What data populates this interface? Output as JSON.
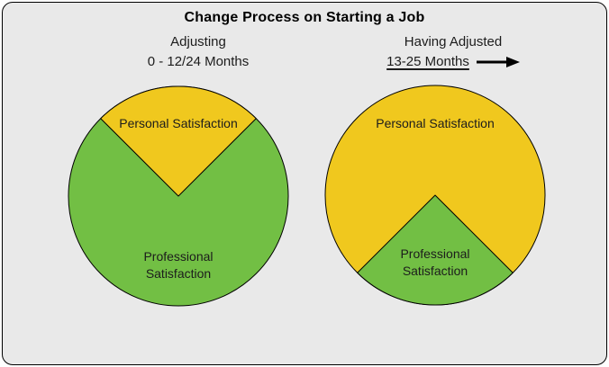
{
  "header": {
    "title": "Change Process on Starting a Job"
  },
  "palette": {
    "panel_background": "#E9E9E9",
    "panel_border": "#000000",
    "personal_yellow": "#F0C81E",
    "professional_green": "#72BF44",
    "text_color": "#1C1C1C"
  },
  "left_section": {
    "heading_line1": "Adjusting",
    "heading_line2": "0 - 12/24 Months"
  },
  "right_section": {
    "heading_line1": "Having Adjusted",
    "heading_line2": "13-25 Months",
    "arrow_icon": "right-arrow"
  },
  "chart_data": [
    {
      "type": "pie",
      "title": "Adjusting 0 - 12/24 Months",
      "legend": "none",
      "labels_inside": true,
      "slices": [
        {
          "label": "Personal Satisfaction",
          "value": 25,
          "color": "#F0C81E",
          "position": "top"
        },
        {
          "label": "Professional Satisfaction",
          "value": 75,
          "color": "#72BF44",
          "position": "base"
        }
      ]
    },
    {
      "type": "pie",
      "title": "Having Adjusted 13-25 Months",
      "legend": "none",
      "labels_inside": true,
      "slices": [
        {
          "label": "Personal Satisfaction",
          "value": 75,
          "color": "#F0C81E",
          "position": "base"
        },
        {
          "label": "Professional Satisfaction",
          "value": 25,
          "color": "#72BF44",
          "position": "bottom"
        }
      ]
    }
  ]
}
